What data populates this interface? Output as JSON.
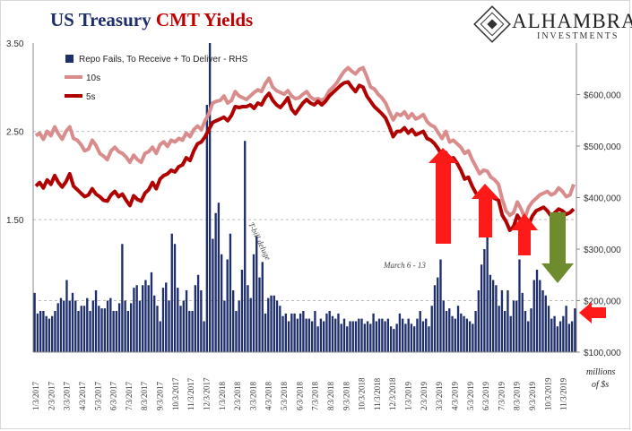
{
  "title": {
    "part1": "US Treasury",
    "part2": "CMT Yields"
  },
  "logo": {
    "brand": "ALHAMBRA",
    "sub": "INVESTMENTS"
  },
  "colors": {
    "bars": "#1f2f6b",
    "line10": "#d98c8c",
    "line5": "#b00000",
    "red_arrow": "#ff1a1a",
    "green_arrow": "#6e8c2e",
    "title_blue": "#1f2f6b",
    "title_red": "#c00000"
  },
  "chart_data": {
    "type": "bar+line",
    "left_axis": {
      "ticks": [
        "1.50",
        "2.50",
        "3.50"
      ],
      "tick_values": [
        1.5,
        2.5,
        3.5
      ],
      "range": [
        0.0,
        3.5
      ]
    },
    "right_axis": {
      "ticks": [
        "$100,000",
        "$200,000",
        "$300,000",
        "$400,000",
        "$500,000",
        "$600,000"
      ],
      "tick_values": [
        100000,
        200000,
        300000,
        400000,
        500000,
        600000
      ],
      "range": [
        100000,
        700000
      ],
      "unit_label_1": "millions",
      "unit_label_2": "of $s"
    },
    "x_labels": [
      "1/3/2017",
      "2/3/2017",
      "3/3/2017",
      "4/3/2017",
      "5/3/2017",
      "6/3/2017",
      "7/3/2017",
      "8/3/2017",
      "9/3/2017",
      "10/3/2017",
      "11/3/2017",
      "12/3/2017",
      "1/3/2018",
      "2/3/2018",
      "3/3/2018",
      "4/3/2018",
      "5/3/2018",
      "6/3/2018",
      "7/3/2018",
      "8/3/2018",
      "9/3/2018",
      "10/3/2018",
      "11/3/2018",
      "12/3/2018",
      "1/3/2019",
      "2/3/2019",
      "3/3/2019",
      "4/3/2019",
      "5/3/2019",
      "6/3/2019",
      "7/3/2019",
      "8/3/2019",
      "9/3/2019",
      "10/3/2019",
      "11/3/2019"
    ],
    "legend": [
      "Repo Fails, To Receive + To Deliver - RHS",
      "10s",
      "5s"
    ],
    "annotations": {
      "tbill": "T-bill deluge",
      "march": "March 6 - 13"
    },
    "series": [
      {
        "name": "Repo Fails, To Receive + To Deliver - RHS",
        "kind": "bar",
        "axis": "right",
        "values": [
          215,
          175,
          180,
          180,
          170,
          165,
          170,
          180,
          195,
          205,
          200,
          240,
          200,
          215,
          200,
          180,
          190,
          190,
          205,
          180,
          200,
          220,
          190,
          185,
          185,
          200,
          205,
          180,
          180,
          195,
          310,
          200,
          180,
          195,
          225,
          230,
          200,
          230,
          240,
          230,
          255,
          210,
          190,
          160,
          225,
          235,
          200,
          330,
          310,
          225,
          190,
          200,
          220,
          180,
          180,
          230,
          250,
          220,
          160,
          580,
          700,
          320,
          370,
          390,
          290,
          200,
          280,
          330,
          220,
          180,
          200,
          260,
          510,
          230,
          205,
          290,
          325,
          245,
          275,
          175,
          205,
          210,
          210,
          200,
          190,
          170,
          175,
          160,
          175,
          175,
          165,
          175,
          180,
          165,
          165,
          160,
          180,
          150,
          165,
          160,
          175,
          180,
          170,
          165,
          175,
          155,
          165,
          150,
          160,
          160,
          160,
          165,
          165,
          155,
          160,
          155,
          175,
          160,
          165,
          165,
          160,
          165,
          150,
          145,
          155,
          175,
          165,
          155,
          165,
          155,
          150,
          165,
          180,
          160,
          165,
          150,
          190,
          230,
          245,
          280,
          200,
          180,
          185,
          170,
          165,
          190,
          175,
          170,
          165,
          160,
          155,
          180,
          220,
          270,
          300,
          330,
          250,
          240,
          230,
          190,
          220,
          180,
          220,
          170,
          200,
          200,
          280,
          215,
          180,
          160,
          185,
          240,
          260,
          240,
          220,
          210,
          190,
          165,
          170,
          150,
          160,
          170,
          190,
          155,
          160,
          185
        ]
      },
      {
        "name": "10s",
        "kind": "line",
        "axis": "left",
        "values": [
          2.45,
          2.48,
          2.41,
          2.5,
          2.45,
          2.55,
          2.47,
          2.41,
          2.5,
          2.55,
          2.42,
          2.4,
          2.35,
          2.28,
          2.3,
          2.4,
          2.34,
          2.25,
          2.22,
          2.18,
          2.28,
          2.32,
          2.27,
          2.25,
          2.21,
          2.15,
          2.23,
          2.18,
          2.15,
          2.25,
          2.27,
          2.32,
          2.25,
          2.35,
          2.38,
          2.33,
          2.4,
          2.38,
          2.42,
          2.4,
          2.48,
          2.44,
          2.52,
          2.56,
          2.52,
          2.62,
          2.7,
          2.82,
          2.84,
          2.85,
          2.9,
          2.82,
          2.85,
          2.95,
          2.9,
          2.88,
          2.86,
          2.9,
          2.94,
          2.97,
          2.95,
          3.04,
          3.1,
          3.0,
          2.96,
          2.94,
          2.92,
          2.96,
          2.9,
          2.87,
          2.88,
          2.92,
          2.95,
          2.89,
          2.86,
          2.87,
          2.85,
          2.88,
          2.96,
          3.0,
          3.05,
          3.12,
          3.18,
          3.22,
          3.18,
          3.15,
          3.2,
          3.22,
          3.12,
          3.0,
          2.98,
          2.92,
          2.88,
          2.82,
          2.72,
          2.63,
          2.7,
          2.68,
          2.72,
          2.65,
          2.7,
          2.64,
          2.66,
          2.69,
          2.61,
          2.57,
          2.55,
          2.48,
          2.42,
          2.5,
          2.38,
          2.4,
          2.36,
          2.32,
          2.25,
          2.28,
          2.18,
          2.1,
          2.02,
          2.06,
          2.05,
          1.98,
          1.95,
          1.9,
          1.73,
          1.6,
          1.55,
          1.58,
          1.7,
          1.62,
          1.52,
          1.64,
          1.7,
          1.74,
          1.78,
          1.8,
          1.82,
          1.78,
          1.8,
          1.86,
          1.82,
          1.76,
          1.78,
          1.9
        ]
      },
      {
        "name": "5s",
        "kind": "line",
        "axis": "left",
        "values": [
          1.88,
          1.92,
          1.86,
          1.95,
          1.9,
          2.0,
          1.92,
          1.87,
          1.93,
          2.02,
          1.88,
          1.84,
          1.8,
          1.76,
          1.78,
          1.85,
          1.79,
          1.76,
          1.72,
          1.71,
          1.78,
          1.82,
          1.76,
          1.79,
          1.72,
          1.66,
          1.77,
          1.73,
          1.71,
          1.8,
          1.84,
          1.92,
          1.85,
          1.96,
          2.0,
          2.02,
          2.06,
          2.04,
          2.1,
          2.12,
          2.2,
          2.17,
          2.28,
          2.36,
          2.38,
          2.44,
          2.52,
          2.6,
          2.62,
          2.64,
          2.66,
          2.62,
          2.68,
          2.78,
          2.77,
          2.78,
          2.78,
          2.8,
          2.76,
          2.82,
          2.8,
          2.88,
          2.93,
          2.85,
          2.8,
          2.77,
          2.82,
          2.88,
          2.75,
          2.7,
          2.76,
          2.82,
          2.86,
          2.82,
          2.8,
          2.84,
          2.8,
          2.84,
          2.9,
          2.94,
          2.98,
          3.02,
          3.05,
          3.06,
          3.0,
          2.95,
          3.02,
          3.0,
          2.9,
          2.84,
          2.78,
          2.74,
          2.7,
          2.65,
          2.55,
          2.44,
          2.5,
          2.5,
          2.54,
          2.48,
          2.52,
          2.46,
          2.48,
          2.5,
          2.42,
          2.4,
          2.36,
          2.3,
          2.22,
          2.26,
          2.18,
          2.2,
          2.14,
          2.06,
          1.96,
          1.98,
          1.88,
          1.8,
          1.76,
          1.82,
          1.8,
          1.76,
          1.74,
          1.72,
          1.55,
          1.48,
          1.38,
          1.42,
          1.55,
          1.48,
          1.38,
          1.44,
          1.54,
          1.6,
          1.62,
          1.64,
          1.6,
          1.54,
          1.58,
          1.62,
          1.6,
          1.56,
          1.58,
          1.62
        ]
      }
    ]
  }
}
